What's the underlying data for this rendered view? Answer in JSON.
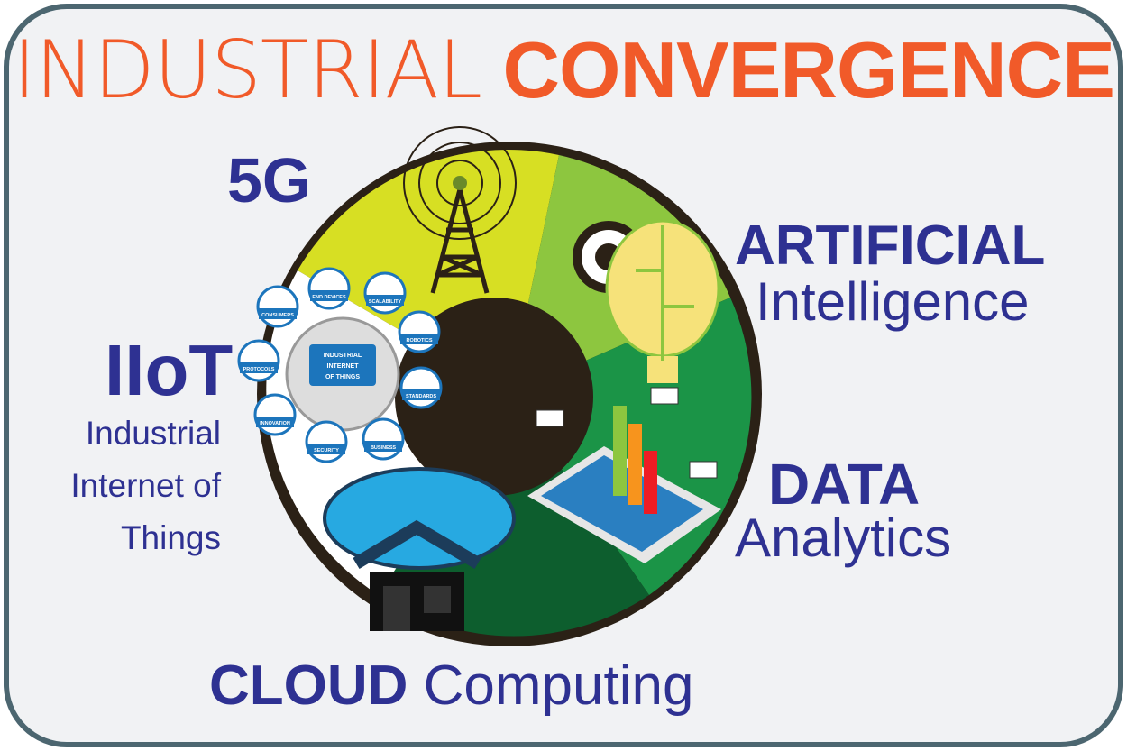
{
  "title": {
    "light": "INDUSTRIAL",
    "bold": "CONVERGENCE"
  },
  "labels": {
    "fiveg": "5G",
    "ai": {
      "bold": "ARTIFICIAL",
      "light": "Intelligence"
    },
    "iiot": {
      "bold": "IIoT",
      "lines": [
        "Industrial",
        "Internet of",
        "Things"
      ]
    },
    "data": {
      "bold": "DATA",
      "light": "Analytics"
    },
    "cloud": {
      "bold": "CLOUD",
      "light": "Computing"
    }
  },
  "iiot_globe": {
    "lines": [
      "INDUSTRIAL",
      "INTERNET",
      "OF THINGS"
    ],
    "badges": [
      "END DEVICES",
      "SCALABILITY",
      "ROBOTICS",
      "STANDARDS",
      "BUSINESS",
      "SECURITY",
      "INNOVATION",
      "PROTOCOLS",
      "CONSUMERS"
    ]
  },
  "colors": {
    "orange": "#f15a29",
    "navy": "#2e3192",
    "frame": "#4c6670",
    "yellow": "#d7df23",
    "lightgreen": "#8dc63f",
    "green": "#1b9447",
    "darkgreen": "#0d5e2e",
    "brown": "#2b2116",
    "badge": "#1c75bc"
  }
}
